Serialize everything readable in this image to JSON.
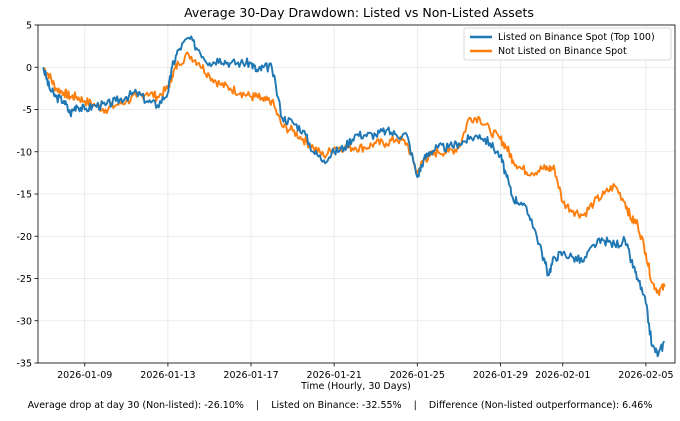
{
  "chart_data": {
    "type": "line",
    "title": "Average 30-Day Drawdown: Listed vs Non-Listed Assets",
    "xlabel": "Time (Hourly, 30 Days)",
    "ylabel": "",
    "x_ticks": [
      "2026-01-09",
      "2026-01-13",
      "2026-01-17",
      "2026-01-21",
      "2026-01-25",
      "2026-01-29",
      "2026-02-01",
      "2026-02-05"
    ],
    "x_tick_days": [
      2,
      6,
      10,
      14,
      18,
      22,
      25,
      29
    ],
    "xlim": [
      -0.25,
      30.4
    ],
    "y_ticks": [
      5,
      0,
      -5,
      -10,
      -15,
      -20,
      -25,
      -30,
      -35
    ],
    "ylim": [
      -35,
      5
    ],
    "grid": true,
    "legend_position": "top-right",
    "x_unit": "days since 2026-01-07",
    "series": [
      {
        "name": "Listed on Binance Spot (Top 100)",
        "color": "#1f77b4",
        "x": [
          0,
          0.3,
          0.6,
          1,
          1.3,
          1.6,
          2,
          2.5,
          3,
          3.5,
          4,
          4.5,
          5,
          5.5,
          6,
          6.2,
          6.5,
          7,
          7.5,
          8,
          8.5,
          9,
          9.5,
          10,
          10.3,
          10.6,
          11,
          11.5,
          12,
          12.5,
          13,
          13.5,
          14,
          14.5,
          15,
          15.5,
          16,
          16.5,
          17,
          17.5,
          18,
          18.3,
          18.6,
          19,
          19.5,
          20,
          20.5,
          21,
          21.5,
          22,
          22.3,
          22.6,
          23,
          23.5,
          24,
          24.3,
          24.6,
          25,
          25.5,
          26,
          26.5,
          27,
          27.5,
          28,
          28.3,
          28.6,
          29,
          29.3,
          29.6,
          29.9
        ],
        "values": [
          0,
          -2.5,
          -3.5,
          -4,
          -5.5,
          -4.5,
          -5,
          -4.5,
          -4.5,
          -4,
          -3.5,
          -3,
          -4,
          -4.5,
          -3,
          0,
          2,
          3.5,
          2,
          0.5,
          1,
          0.5,
          0.5,
          0.5,
          -0.5,
          0,
          0,
          -6,
          -6.5,
          -7.5,
          -10,
          -11,
          -10,
          -9.5,
          -8,
          -8,
          -8,
          -7.5,
          -8,
          -8,
          -13,
          -11,
          -10,
          -9.5,
          -9.5,
          -9,
          -8.5,
          -8,
          -9,
          -10.5,
          -13,
          -15.5,
          -16,
          -18,
          -22,
          -24.5,
          -22.5,
          -22,
          -22.5,
          -23,
          -21,
          -20.5,
          -21,
          -20.5,
          -23,
          -25,
          -28,
          -33,
          -34,
          -32.5
        ]
      },
      {
        "name": "Not Listed on Binance Spot",
        "color": "#ff7f0e",
        "x": [
          0,
          0.3,
          0.6,
          1,
          1.3,
          1.6,
          2,
          2.5,
          3,
          3.5,
          4,
          4.5,
          5,
          5.5,
          6,
          6.2,
          6.5,
          7,
          7.5,
          8,
          8.5,
          9,
          9.5,
          10,
          10.3,
          10.6,
          11,
          11.5,
          12,
          12.5,
          13,
          13.5,
          14,
          14.5,
          15,
          15.5,
          16,
          16.5,
          17,
          17.5,
          18,
          18.3,
          18.6,
          19,
          19.5,
          20,
          20.5,
          21,
          21.5,
          22,
          22.3,
          22.6,
          23,
          23.5,
          24,
          24.3,
          24.6,
          25,
          25.5,
          26,
          26.5,
          27,
          27.5,
          28,
          28.3,
          28.6,
          29,
          29.3,
          29.6,
          29.9
        ],
        "values": [
          0,
          -1,
          -2.5,
          -3,
          -3.5,
          -3.5,
          -4,
          -4.5,
          -5,
          -4.5,
          -4,
          -3.5,
          -3,
          -3.5,
          -2.5,
          -1,
          0.5,
          1.5,
          0.5,
          -1,
          -2,
          -2.5,
          -3,
          -3.5,
          -3.5,
          -4,
          -4,
          -7,
          -7.5,
          -8.5,
          -9.5,
          -10.5,
          -9.5,
          -9.5,
          -9.5,
          -9.5,
          -9,
          -9,
          -8.5,
          -9,
          -12.5,
          -11,
          -10.5,
          -10,
          -10,
          -9.5,
          -6,
          -6,
          -7.5,
          -8.5,
          -9.5,
          -11,
          -12,
          -12.5,
          -12,
          -12,
          -12,
          -16,
          -17,
          -17.5,
          -16,
          -15,
          -14,
          -16,
          -18,
          -18.5,
          -22,
          -25.5,
          -26.5,
          -26
        ]
      }
    ]
  },
  "footer": {
    "text": "Average drop at day 30 (Non-listed): -26.10%    |    Listed on Binance: -32.55%    |    Difference (Non-listed outperformance): 6.46%"
  }
}
